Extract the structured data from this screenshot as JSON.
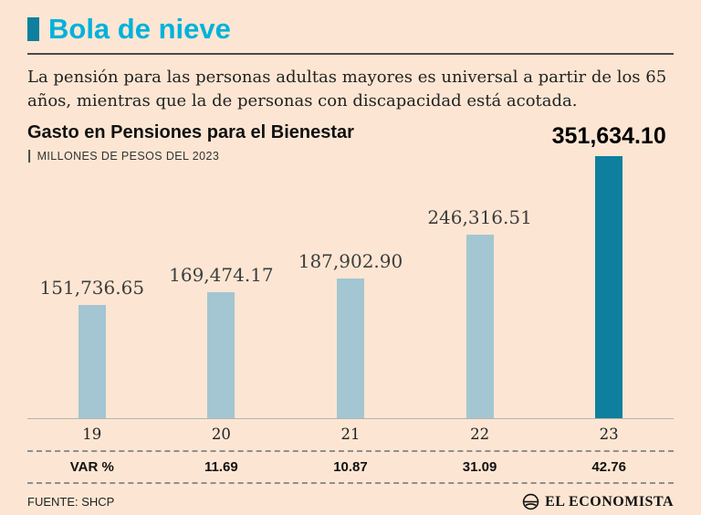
{
  "header": {
    "title": "Bola de nieve",
    "description": "La pensión para las personas adultas mayores es universal a partir de los 65 años, mientras que la de personas con discapacidad está acotada."
  },
  "chart": {
    "title": "Gasto en Pensiones para el Bienestar",
    "subtitle_prefix": "|",
    "subtitle": "MILLONES DE PESOS DEL 2023"
  },
  "chart_data": {
    "type": "bar",
    "title": "Gasto en Pensiones para el Bienestar",
    "ylabel": "MILLONES DE PESOS DEL 2023",
    "categories": [
      "19",
      "20",
      "21",
      "22",
      "23"
    ],
    "values": [
      151736.65,
      169474.17,
      187902.9,
      246316.51,
      351634.1
    ],
    "value_labels": [
      "151,736.65",
      "169,474.17",
      "187,902.90",
      "246,316.51",
      "351,634.10"
    ],
    "var_row": [
      "VAR %",
      "11.69",
      "10.87",
      "31.09",
      "42.76"
    ],
    "highlight_index": 4,
    "legend": "none",
    "grid": false,
    "colors": {
      "background": "#fce6d3",
      "accent_title": "#00b1dc",
      "bar": "#a3c6d2",
      "bar_highlight": "#0e7f9e"
    }
  },
  "footer": {
    "source": "FUENTE: SHCP",
    "brand": "EL ECONOMISTA"
  }
}
